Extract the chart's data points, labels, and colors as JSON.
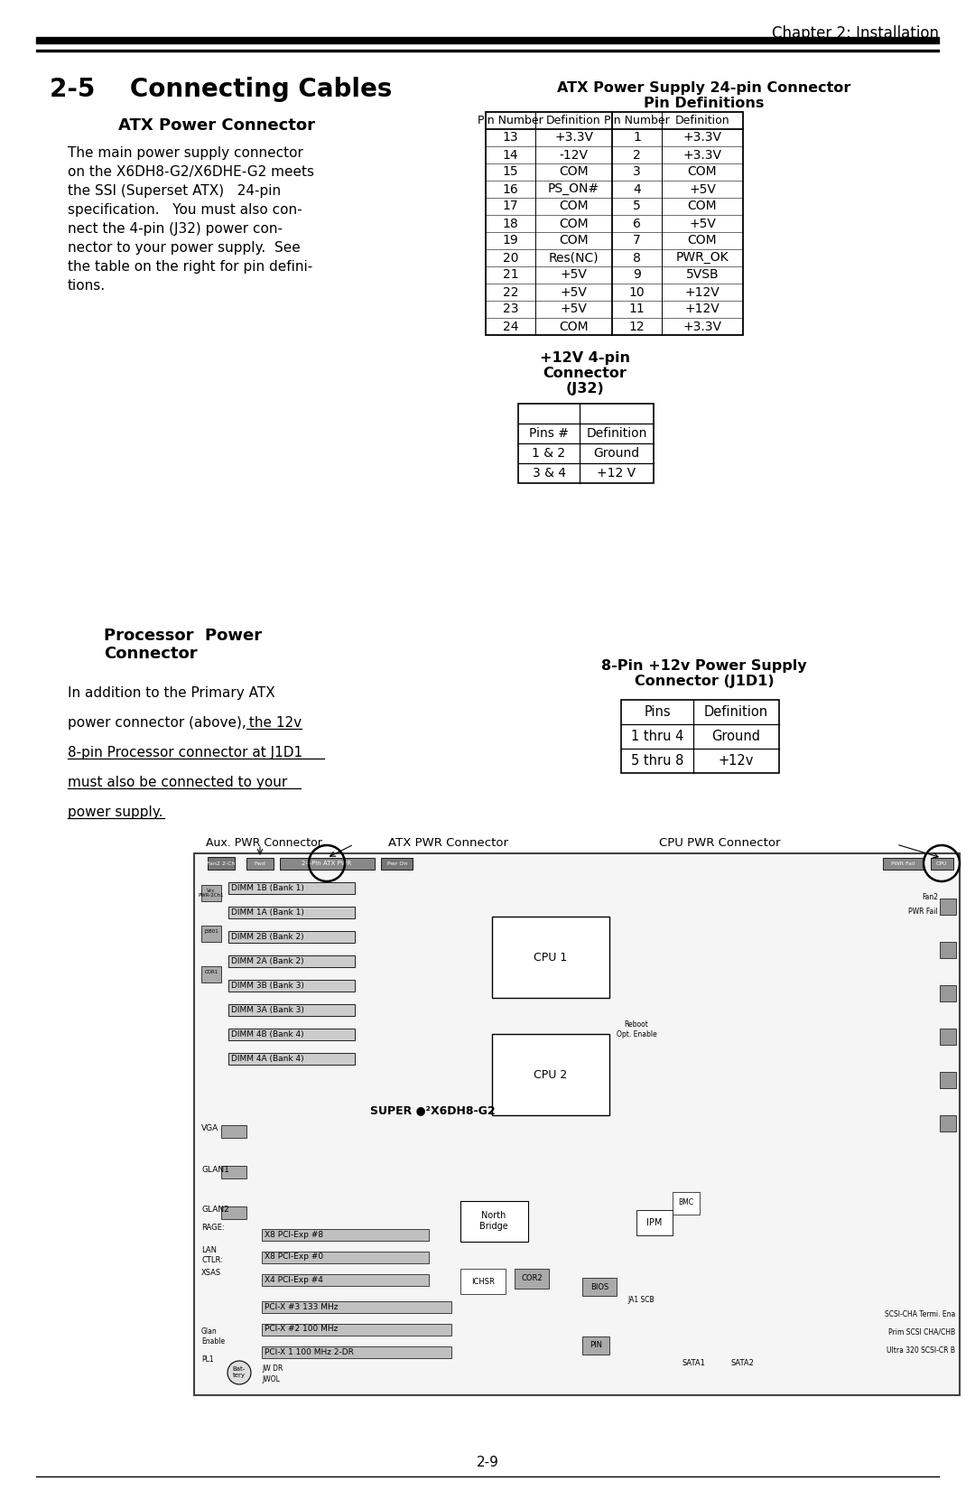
{
  "chapter_header": "Chapter 2: Installation",
  "section_title": "2-5    Connecting Cables",
  "atx_section_title": "ATX Power Connector",
  "atx_body_lines": [
    "The main power supply connector",
    "on the X6DH8-G2/X6DHE-G2 meets",
    "the SSI (Superset ATX)   24-pin",
    "specification.   You must also con-",
    "nect the 4-pin (J32) power con-",
    "nector to your power supply.  See",
    "the table on the right for pin defini-",
    "tions."
  ],
  "atx_table_title1": "ATX Power Supply 24-pin Connector",
  "atx_table_title2": "Pin Definitions",
  "atx_table_data": [
    [
      "13",
      "+3.3V",
      "1",
      "+3.3V"
    ],
    [
      "14",
      "-12V",
      "2",
      "+3.3V"
    ],
    [
      "15",
      "COM",
      "3",
      "COM"
    ],
    [
      "16",
      "PS_ON#",
      "4",
      "+5V"
    ],
    [
      "17",
      "COM",
      "5",
      "COM"
    ],
    [
      "18",
      "COM",
      "6",
      "+5V"
    ],
    [
      "19",
      "COM",
      "7",
      "COM"
    ],
    [
      "20",
      "Res(NC)",
      "8",
      "PWR_OK"
    ],
    [
      "21",
      "+5V",
      "9",
      "5VSB"
    ],
    [
      "22",
      "+5V",
      "10",
      "+12V"
    ],
    [
      "23",
      "+5V",
      "11",
      "+12V"
    ],
    [
      "24",
      "COM",
      "12",
      "+3.3V"
    ]
  ],
  "j32_titles": [
    "+12V 4-pin",
    "Connector",
    "(J32)"
  ],
  "j32_data": [
    [
      "1 & 2",
      "Ground"
    ],
    [
      "3 & 4",
      "+12 V"
    ]
  ],
  "proc_title_line1": "Processor  Power",
  "proc_title_line2": "Connector",
  "proc_body_normal": [
    "In addition to the Primary ATX",
    "power connector (above),"
  ],
  "proc_body_underlined": [
    " the 12v",
    "8-pin Processor connector at J1D1",
    "must also be connected to your",
    "power supply."
  ],
  "j1d1_title1": "8-Pin +12v Power Supply",
  "j1d1_title2": "Connector (J1D1)",
  "j1d1_data": [
    [
      "1 thru 4",
      "Ground"
    ],
    [
      "5 thru 8",
      "+12v"
    ]
  ],
  "page_number": "2-9",
  "mem_labels": [
    "DIMM 1B (Bank 1)",
    "DIMM 1A (Bank 1)",
    "DIMM 2B (Bank 2)",
    "DIMM 2A (Bank 2)",
    "DIMM 3B (Bank 3)",
    "DIMM 3A (Bank 3)",
    "DIMM 4B (Bank 4)",
    "DIMM 4A (Bank 4)"
  ],
  "diag_top_labels": [
    "Aux. PWR Connector",
    "ATX PWR Connector",
    "CPU PWR Connector"
  ]
}
